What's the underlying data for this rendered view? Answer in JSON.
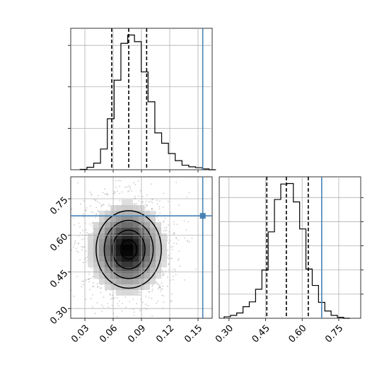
{
  "chart_data": {
    "type": "corner",
    "title": "",
    "parameters": [
      {
        "name": "",
        "range": [
          0.015,
          0.165
        ],
        "ticks": [
          "0.03",
          "0.06",
          "0.09",
          "0.12",
          "0.15"
        ]
      },
      {
        "name": "",
        "range": [
          0.26,
          0.84
        ],
        "ticks": [
          "0.30",
          "0.45",
          "0.60",
          "0.75"
        ]
      }
    ],
    "truths": [
      0.155,
      0.68
    ],
    "grid": true,
    "panels": [
      {
        "type": "histogram",
        "parameter_index": 0,
        "bin_start": 0.025,
        "bin_width": 0.0072,
        "counts": [
          1,
          6,
          16,
          50,
          123,
          216,
          305,
          325,
          309,
          236,
          164,
          89,
          64,
          39,
          22,
          11,
          7,
          5,
          2,
          0
        ],
        "quantiles": [
          0.0585,
          0.0765,
          0.0955
        ]
      },
      {
        "type": "histogram",
        "parameter_index": 1,
        "bin_start": 0.28,
        "bin_width": 0.0258,
        "counts": [
          3,
          6,
          11,
          24,
          34,
          60,
          100,
          179,
          246,
          278,
          279,
          241,
          185,
          102,
          68,
          33,
          15,
          6,
          2,
          0
        ],
        "quantiles": [
          0.455,
          0.535,
          0.625
        ]
      },
      {
        "type": "2d-density",
        "x_parameter_index": 0,
        "y_parameter_index": 1,
        "peak": [
          0.075,
          0.545
        ],
        "contour_levels": [
          "0.5",
          "1.0",
          "1.5",
          "2.0"
        ]
      }
    ]
  }
}
